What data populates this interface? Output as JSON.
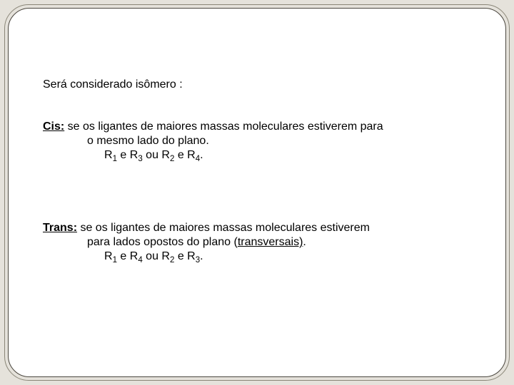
{
  "slide": {
    "background_color": "#e5e2db",
    "panel_color": "#ffffff",
    "outer_border_color": "#8a8678",
    "inner_border_color": "#4a463e",
    "text_color": "#000000",
    "font_family": "Arial",
    "body_fontsize_pt": 12
  },
  "intro": "Será considerado isômero :",
  "cis": {
    "label": "Cis:",
    "line1_after_label": "  se os ligantes de maiores massas moleculares estiverem para",
    "line2": "o mesmo lado do plano.",
    "line3_prefix": "R",
    "line3_mid1": " e R",
    "line3_mid2": " ou R",
    "line3_mid3": " e R",
    "line3_suffix": ".",
    "sub_a": "1",
    "sub_b": "3",
    "sub_c": "2",
    "sub_d": "4"
  },
  "trans": {
    "label": "Trans:",
    "line1_after_label": " se os ligantes de maiores massas moleculares estiverem",
    "line2_before_u": "para lados opostos do plano (",
    "line2_u": "transversais)",
    "line2_after_u": ".",
    "line3_prefix": "R",
    "line3_mid1": " e R",
    "line3_mid2": " ou R",
    "line3_mid3": " e R",
    "line3_suffix": ".",
    "sub_a": "1",
    "sub_b": "4",
    "sub_c": "2",
    "sub_d": "3"
  }
}
